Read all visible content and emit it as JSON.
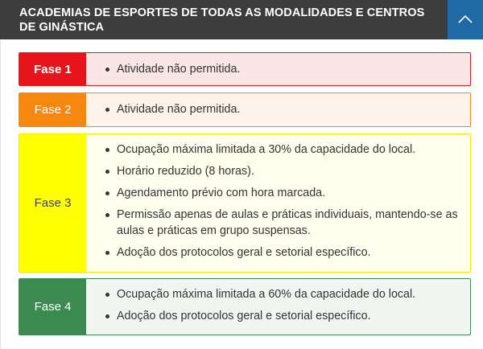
{
  "header": {
    "title": "ACADEMIAS DE ESPORTES DE TODAS AS MODALIDADES E CENTROS DE GINÁSTICA",
    "toggle_icon": "chevron-up-icon",
    "colors": {
      "background": "#3d3d3d",
      "toggle": "#1f6aa5"
    }
  },
  "phases": [
    {
      "label": "Fase 1",
      "color": "#e8141b",
      "label_text_color": "#ffffff",
      "bg": "#fbe6e6",
      "border": "#e8141b",
      "items": [
        "Atividade não permitida."
      ]
    },
    {
      "label": "Fase 2",
      "color": "#f7880f",
      "label_text_color": "#ffffff",
      "bg": "#fdf3ea",
      "border": "#f7880f",
      "items": [
        "Atividade não permitida."
      ]
    },
    {
      "label": "Fase 3",
      "color": "#ffff00",
      "label_text_color": "#444444",
      "bg": "#ffffef",
      "border": "#f0ec00",
      "items": [
        "Ocupação máxima limitada a 30% da capacidade do local.",
        "Horário reduzido (8 horas).",
        "Agendamento prévio com hora marcada.",
        "Permissão apenas de aulas e práticas individuais, mantendo-se as aulas e práticas em grupo suspensas.",
        "Adoção dos protocolos geral e setorial específico."
      ]
    },
    {
      "label": "Fase 4",
      "color": "#3b8a4f",
      "label_text_color": "#ffffff",
      "bg": "#f2f6f3",
      "border": "#3b8a4f",
      "items": [
        "Ocupação máxima limitada a 60% da capacidade do local.",
        "Adoção dos protocolos geral e setorial específico."
      ]
    }
  ]
}
